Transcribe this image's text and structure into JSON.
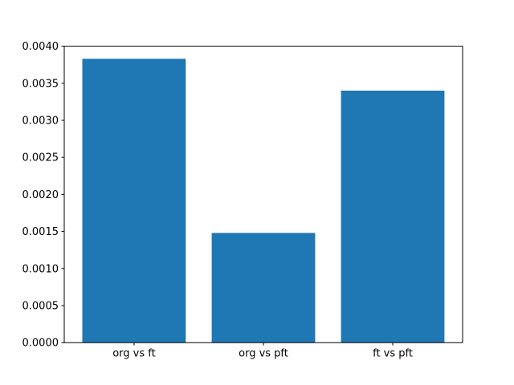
{
  "figure": {
    "background_color": "#ffffff",
    "spine_color": "#000000",
    "tick_color": "#000000"
  },
  "chart_data": {
    "type": "bar",
    "title": "",
    "xlabel": "",
    "ylabel": "",
    "categories": [
      "org vs ft",
      "org vs pft",
      "ft vs pft"
    ],
    "values": [
      0.00383,
      0.00148,
      0.0034
    ],
    "bar_color": "#1f77b4",
    "ylim": [
      0,
      0.004
    ],
    "yticks": [
      0.0,
      0.0005,
      0.001,
      0.0015,
      0.002,
      0.0025,
      0.003,
      0.0035,
      0.004
    ],
    "ytick_labels": [
      "0.0000",
      "0.0005",
      "0.0010",
      "0.0015",
      "0.0020",
      "0.0025",
      "0.0030",
      "0.0035",
      "0.0040"
    ],
    "grid": false,
    "legend": null
  }
}
